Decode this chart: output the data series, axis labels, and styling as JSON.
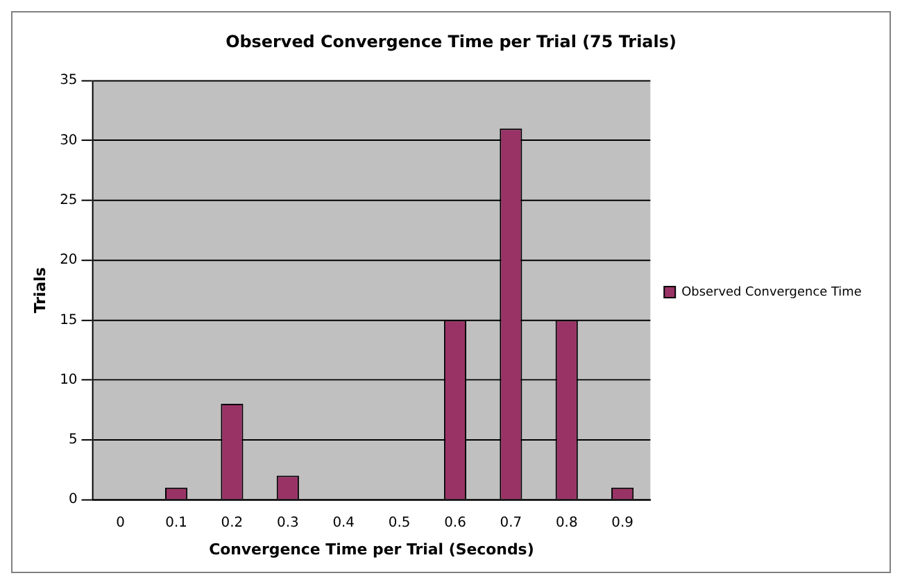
{
  "chart_data": {
    "type": "bar",
    "title": "Observed Convergence Time per Trial (75 Trials)",
    "xlabel": "Convergence Time per Trial (Seconds)",
    "ylabel": "Trials",
    "categories": [
      "0",
      "0.1",
      "0.2",
      "0.3",
      "0.4",
      "0.5",
      "0.6",
      "0.7",
      "0.8",
      "0.9"
    ],
    "series": [
      {
        "name": "Observed Convergence Time",
        "color": "#993366",
        "values": [
          0,
          1,
          8,
          2,
          0,
          0,
          15,
          31,
          15,
          1
        ]
      }
    ],
    "ylim": [
      0,
      35
    ],
    "yticks": [
      0,
      5,
      10,
      15,
      20,
      25,
      30,
      35
    ],
    "grid": "y",
    "legend": "right"
  }
}
